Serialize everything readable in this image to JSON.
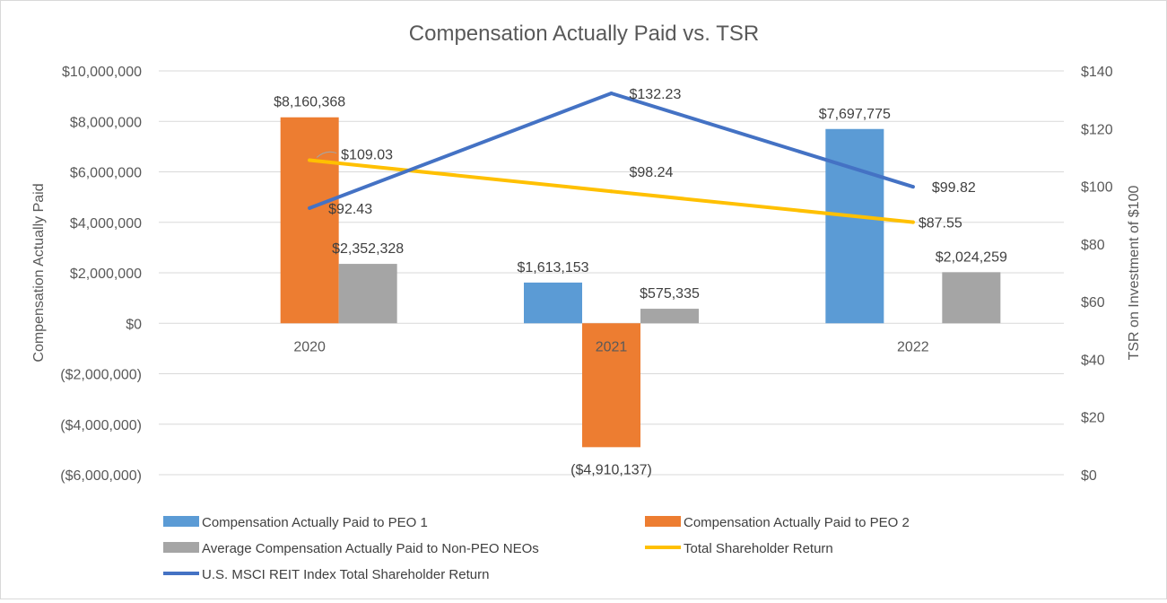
{
  "chart_data": {
    "type": "bar",
    "title": "Compensation Actually Paid vs. TSR",
    "categories": [
      "2020",
      "2021",
      "2022"
    ],
    "ylabel": "Compensation Actually Paid",
    "y2label": "TSR on Investment of $100",
    "ylim": [
      -6000000,
      10000000
    ],
    "y2lim": [
      0,
      140
    ],
    "yticks": [
      {
        "value": 10000000,
        "label": "$10,000,000"
      },
      {
        "value": 8000000,
        "label": "$8,000,000"
      },
      {
        "value": 6000000,
        "label": "$6,000,000"
      },
      {
        "value": 4000000,
        "label": "$4,000,000"
      },
      {
        "value": 2000000,
        "label": "$2,000,000"
      },
      {
        "value": 0,
        "label": "$0"
      },
      {
        "value": -2000000,
        "label": "($2,000,000)"
      },
      {
        "value": -4000000,
        "label": "($4,000,000)"
      },
      {
        "value": -6000000,
        "label": "($6,000,000)"
      }
    ],
    "y2ticks": [
      {
        "value": 140,
        "label": "$140"
      },
      {
        "value": 120,
        "label": "$120"
      },
      {
        "value": 100,
        "label": "$100"
      },
      {
        "value": 80,
        "label": "$80"
      },
      {
        "value": 60,
        "label": "$60"
      },
      {
        "value": 40,
        "label": "$40"
      },
      {
        "value": 20,
        "label": "$20"
      },
      {
        "value": 0,
        "label": "$0"
      }
    ],
    "bar_series": [
      {
        "name": "Compensation Actually Paid to PEO 1",
        "color": "#5B9BD5",
        "values": [
          null,
          1613153,
          7697775
        ],
        "labels": [
          "",
          "$1,613,153",
          "$7,697,775"
        ]
      },
      {
        "name": "Compensation Actually Paid to PEO 2",
        "color": "#ED7D31",
        "values": [
          8160368,
          -4910137,
          null
        ],
        "labels": [
          "$8,160,368",
          "($4,910,137)",
          ""
        ]
      },
      {
        "name": "Average Compensation Actually Paid to Non-PEO NEOs",
        "color": "#A5A5A5",
        "values": [
          2352328,
          575335,
          2024259
        ],
        "labels": [
          "$2,352,328",
          "$575,335",
          "$2,024,259"
        ]
      }
    ],
    "line_series": [
      {
        "name": "Total Shareholder Return",
        "color": "#FFC000",
        "values": [
          109.03,
          98.24,
          87.55
        ],
        "labels": [
          "$109.03",
          "$98.24",
          "$87.55"
        ]
      },
      {
        "name": "U.S. MSCI REIT Index Total Shareholder Return",
        "color": "#4472C4",
        "values": [
          92.43,
          132.23,
          99.82
        ],
        "labels": [
          "$92.43",
          "$132.23",
          "$99.82"
        ]
      }
    ],
    "legend_position": "bottom"
  }
}
